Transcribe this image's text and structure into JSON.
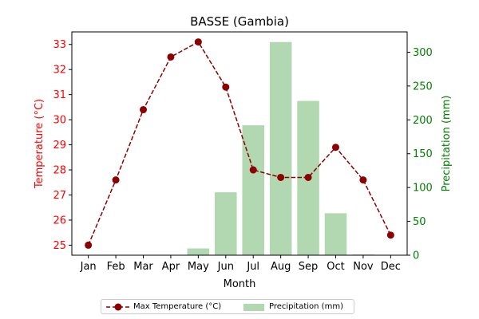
{
  "chart_data": {
    "type": "bar+line",
    "title": "BASSE (Gambia)",
    "xlabel": "Month",
    "categories": [
      "Jan",
      "Feb",
      "Mar",
      "Apr",
      "May",
      "Jun",
      "Jul",
      "Aug",
      "Sep",
      "Oct",
      "Nov",
      "Dec"
    ],
    "series": [
      {
        "name": "Max Temperature (°C)",
        "type": "line",
        "axis": "left",
        "color": "#8b0000",
        "style": "dashed",
        "marker": "circle",
        "values": [
          25.0,
          27.6,
          30.4,
          32.5,
          33.1,
          31.3,
          28.0,
          27.7,
          27.7,
          28.9,
          27.6,
          25.4
        ]
      },
      {
        "name": "Precipitation (mm)",
        "type": "bar",
        "axis": "right",
        "color": "#b2d8b2",
        "values": [
          0,
          0,
          0,
          0,
          10,
          93,
          192,
          315,
          228,
          62,
          1,
          0
        ]
      }
    ],
    "y_left": {
      "label": "Temperature (°C)",
      "color": "#ff0000",
      "ylim": [
        24.6,
        33.5
      ],
      "ticks": [
        25,
        26,
        27,
        28,
        29,
        30,
        31,
        32,
        33
      ]
    },
    "y_right": {
      "label": "Precipitation (mm)",
      "color": "#008000",
      "ylim": [
        0,
        330
      ],
      "ticks": [
        0,
        50,
        100,
        150,
        200,
        250,
        300
      ]
    },
    "grid": false,
    "legend": {
      "placement": "bottom-center",
      "entries": [
        "Max Temperature (°C)",
        "Precipitation (mm)"
      ]
    }
  }
}
